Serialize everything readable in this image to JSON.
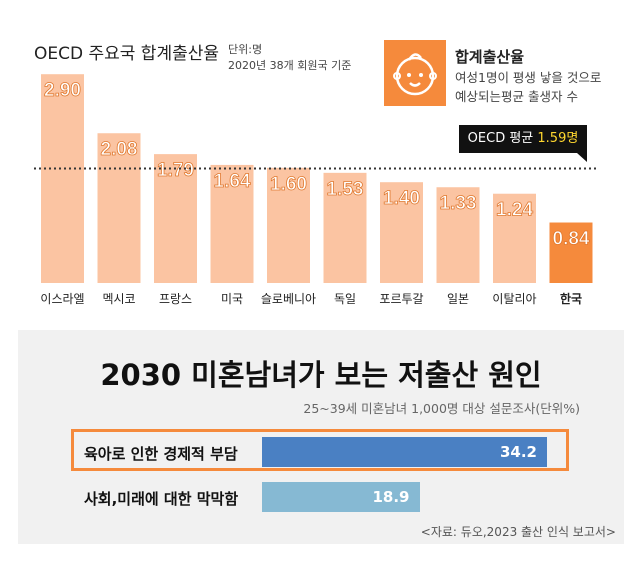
{
  "top": {
    "title": "OECD 주요국 합계출산율",
    "unit": "단위:명",
    "subtitle": "2020년 38개 회원국 기준",
    "legend_title": "합계출산율",
    "legend_desc_1": "여성1명이 평생 낳을 것으로",
    "legend_desc_2": "예상되는평균 출생자 수",
    "avg_label": "OECD 평균",
    "avg_value": "1.59명"
  },
  "bottom": {
    "title": "2030 미혼남녀가 보는 저출산 원인",
    "subtitle": "25~39세 미혼남녀 1,000명 대상 설문조사(단위%)",
    "source": "<자료: 듀오,2023 출산 인식 보고서>"
  },
  "colors": {
    "bar_light": "#fbc4a2",
    "bar_korea": "#f58a3c",
    "bar_reason1": "#4a80c3",
    "bar_reason2": "#86b9d3",
    "accent": "#f58a3c"
  },
  "chart_data": [
    {
      "type": "bar",
      "title": "OECD 주요국 합계출산율",
      "categories": [
        "이스라엘",
        "멕시코",
        "프랑스",
        "미국",
        "슬로베니아",
        "독일",
        "포르투갈",
        "일본",
        "이탈리아",
        "한국"
      ],
      "values": [
        2.9,
        2.08,
        1.79,
        1.64,
        1.6,
        1.53,
        1.4,
        1.33,
        1.24,
        0.84
      ],
      "labels": [
        "2.90",
        "2.08",
        "1.79",
        "1.64",
        "1.60",
        "1.53",
        "1.40",
        "1.33",
        "1.24",
        "0.84"
      ],
      "reference_line": {
        "label": "OECD 평균",
        "value": 1.59
      },
      "ylim": [
        0,
        3.0
      ],
      "xlabel": "",
      "ylabel": ""
    },
    {
      "type": "bar",
      "orientation": "horizontal",
      "title": "2030 미혼남녀가 보는 저출산 원인",
      "categories": [
        "육아로 인한 경제적 부담",
        "사회,미래에 대한 막막함"
      ],
      "values": [
        34.2,
        18.9
      ],
      "labels": [
        "34.2",
        "18.9"
      ],
      "xlim": [
        0,
        36
      ],
      "highlighted": "육아로 인한 경제적 부담"
    }
  ]
}
